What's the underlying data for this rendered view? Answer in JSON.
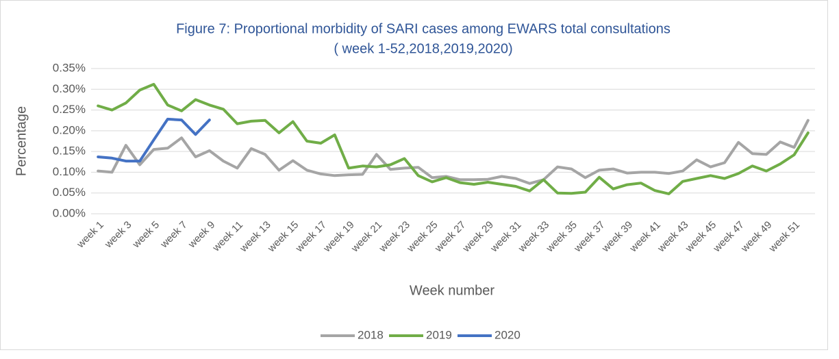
{
  "chart_data": {
    "type": "line",
    "title": [
      "Figure 7: Proportional morbidity  of SARI cases among EWARS total consultations",
      "( week 1-52,2018,2019,2020)"
    ],
    "y_label": "Percentage",
    "x_label": "Week number",
    "categories": [
      "week 1",
      null,
      "week 3",
      null,
      "week 5",
      null,
      "week 7",
      null,
      "week 9",
      null,
      "week 11",
      null,
      "week 13",
      null,
      "week 15",
      null,
      "week 17",
      null,
      "week 19",
      null,
      "week 21",
      null,
      "week 23",
      null,
      "week 25",
      null,
      "week 27",
      null,
      "week 29",
      null,
      "week 31",
      null,
      "week 33",
      null,
      "week 35",
      null,
      "week 37",
      null,
      "week 39",
      null,
      "week 41",
      null,
      "week 43",
      null,
      "week 45",
      null,
      "week 47",
      null,
      "week 49",
      null,
      "week 51",
      null
    ],
    "series": [
      {
        "name": "2018",
        "color": "#a5a5a5",
        "values": [
          0.103,
          0.1,
          0.165,
          0.118,
          0.155,
          0.158,
          0.183,
          0.137,
          0.152,
          0.127,
          0.11,
          0.157,
          0.143,
          0.105,
          0.128,
          0.105,
          0.096,
          0.092,
          0.094,
          0.095,
          0.143,
          0.107,
          0.11,
          0.112,
          0.087,
          0.09,
          0.082,
          0.082,
          0.083,
          0.09,
          0.085,
          0.073,
          0.082,
          0.113,
          0.108,
          0.087,
          0.105,
          0.108,
          0.098,
          0.1,
          0.1,
          0.097,
          0.103,
          0.13,
          0.113,
          0.123,
          0.172,
          0.145,
          0.143,
          0.173,
          0.16,
          0.225
        ]
      },
      {
        "name": "2019",
        "color": "#70ad47",
        "values": [
          0.26,
          0.25,
          0.267,
          0.298,
          0.312,
          0.262,
          0.248,
          0.275,
          0.262,
          0.252,
          0.217,
          0.223,
          0.225,
          0.195,
          0.222,
          0.175,
          0.17,
          0.19,
          0.11,
          0.115,
          0.113,
          0.118,
          0.133,
          0.092,
          0.077,
          0.087,
          0.075,
          0.071,
          0.076,
          0.071,
          0.066,
          0.055,
          0.082,
          0.05,
          0.049,
          0.052,
          0.088,
          0.06,
          0.07,
          0.074,
          0.056,
          0.048,
          0.078,
          0.085,
          0.092,
          0.085,
          0.097,
          0.115,
          0.103,
          0.12,
          0.142,
          0.195
        ]
      },
      {
        "name": "2020",
        "color": "#4472c4",
        "values": [
          0.137,
          0.134,
          0.127,
          0.127,
          0.178,
          0.228,
          0.226,
          0.191,
          0.226,
          null,
          null,
          null,
          null,
          null,
          null,
          null,
          null,
          null,
          null,
          null,
          null,
          null,
          null,
          null,
          null,
          null,
          null,
          null,
          null,
          null,
          null,
          null,
          null,
          null,
          null,
          null,
          null,
          null,
          null,
          null,
          null,
          null,
          null,
          null,
          null,
          null,
          null,
          null,
          null,
          null,
          null,
          null
        ]
      }
    ],
    "ylim": [
      0,
      0.35
    ],
    "yticks": [
      {
        "value": 0,
        "label": "0.00%"
      },
      {
        "value": 0.05,
        "label": "0.05%"
      },
      {
        "value": 0.1,
        "label": "0.10%"
      },
      {
        "value": 0.15,
        "label": "0.15%"
      },
      {
        "value": 0.2,
        "label": "0.20%"
      },
      {
        "value": 0.25,
        "label": "0.25%"
      },
      {
        "value": 0.3,
        "label": "0.30%"
      },
      {
        "value": 0.35,
        "label": "0.35%"
      }
    ],
    "grid": true,
    "legend": "bottom"
  }
}
